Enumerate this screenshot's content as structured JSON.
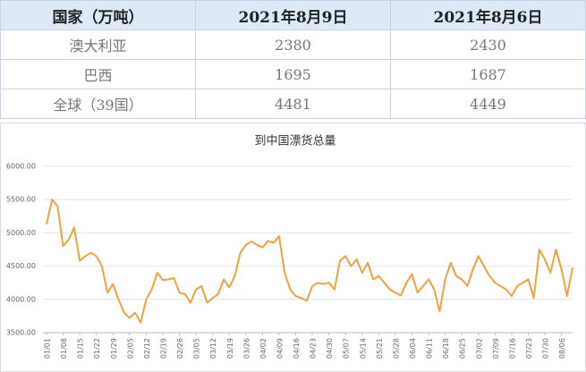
{
  "table": {
    "header": [
      "国家（万吨）",
      "2021年8月9日",
      "2021年8月6日"
    ],
    "rows": [
      [
        "澳大利亚",
        "2380",
        "2430"
      ],
      [
        "巴西",
        "1695",
        "1687"
      ],
      [
        "全球（39国）",
        "4481",
        "4449"
      ]
    ]
  },
  "chart_data": {
    "type": "line",
    "title": "到中国漂货总量",
    "categories": [
      "01/01",
      null,
      null,
      "01/08",
      null,
      null,
      "01/15",
      null,
      null,
      "01/22",
      null,
      null,
      "01/29",
      null,
      null,
      "02/05",
      null,
      null,
      "02/12",
      null,
      null,
      "02/19",
      null,
      null,
      "02/26",
      null,
      null,
      "03/05",
      null,
      null,
      "03/12",
      null,
      null,
      "03/19",
      null,
      null,
      "03/26",
      null,
      null,
      "04/02",
      null,
      null,
      "04/09",
      null,
      null,
      "04/16",
      null,
      null,
      "04/23",
      null,
      null,
      "04/30",
      null,
      null,
      "05/07",
      null,
      null,
      "05/14",
      null,
      null,
      "05/21",
      null,
      null,
      "05/28",
      null,
      null,
      "06/04",
      null,
      null,
      "06/11",
      null,
      null,
      "06/18",
      null,
      null,
      "06/25",
      null,
      null,
      "07/02",
      null,
      null,
      "07/09",
      null,
      null,
      "07/16",
      null,
      null,
      "07/23",
      null,
      null,
      "07/30",
      null,
      null,
      "08/06",
      null,
      null
    ],
    "series": [
      {
        "color": "#f0a040",
        "values": [
          5130,
          5500,
          5400,
          4800,
          4900,
          5080,
          4580,
          4650,
          4700,
          4650,
          4500,
          4100,
          4230,
          4000,
          3800,
          3720,
          3800,
          3650,
          4000,
          4150,
          4400,
          4290,
          4300,
          4320,
          4100,
          4080,
          3950,
          4150,
          4200,
          3950,
          4020,
          4080,
          4300,
          4180,
          4350,
          4700,
          4820,
          4870,
          4820,
          4780,
          4880,
          4850,
          4950,
          4400,
          4150,
          4050,
          4020,
          3980,
          4200,
          4250,
          4230,
          4250,
          4150,
          4580,
          4650,
          4500,
          4600,
          4400,
          4550,
          4300,
          4350,
          4250,
          4150,
          4100,
          4060,
          4250,
          4380,
          4100,
          4200,
          4300,
          4150,
          3820,
          4300,
          4550,
          4350,
          4300,
          4200,
          4450,
          4650,
          4500,
          4350,
          4250,
          4200,
          4150,
          4050,
          4200,
          4250,
          4300,
          4020,
          4750,
          4600,
          4400,
          4750,
          4449,
          4050,
          4481
        ]
      }
    ],
    "ylim": [
      3500,
      6000
    ],
    "yticks": [
      {
        "value": 3500,
        "label": "3500.00"
      },
      {
        "value": 4000,
        "label": "4000.00"
      },
      {
        "value": 4500,
        "label": "4500.00"
      },
      {
        "value": 5000,
        "label": "5000.00"
      },
      {
        "value": 5500,
        "label": "5500.00"
      },
      {
        "value": 6000,
        "label": "6000.00"
      }
    ],
    "grid": true
  }
}
